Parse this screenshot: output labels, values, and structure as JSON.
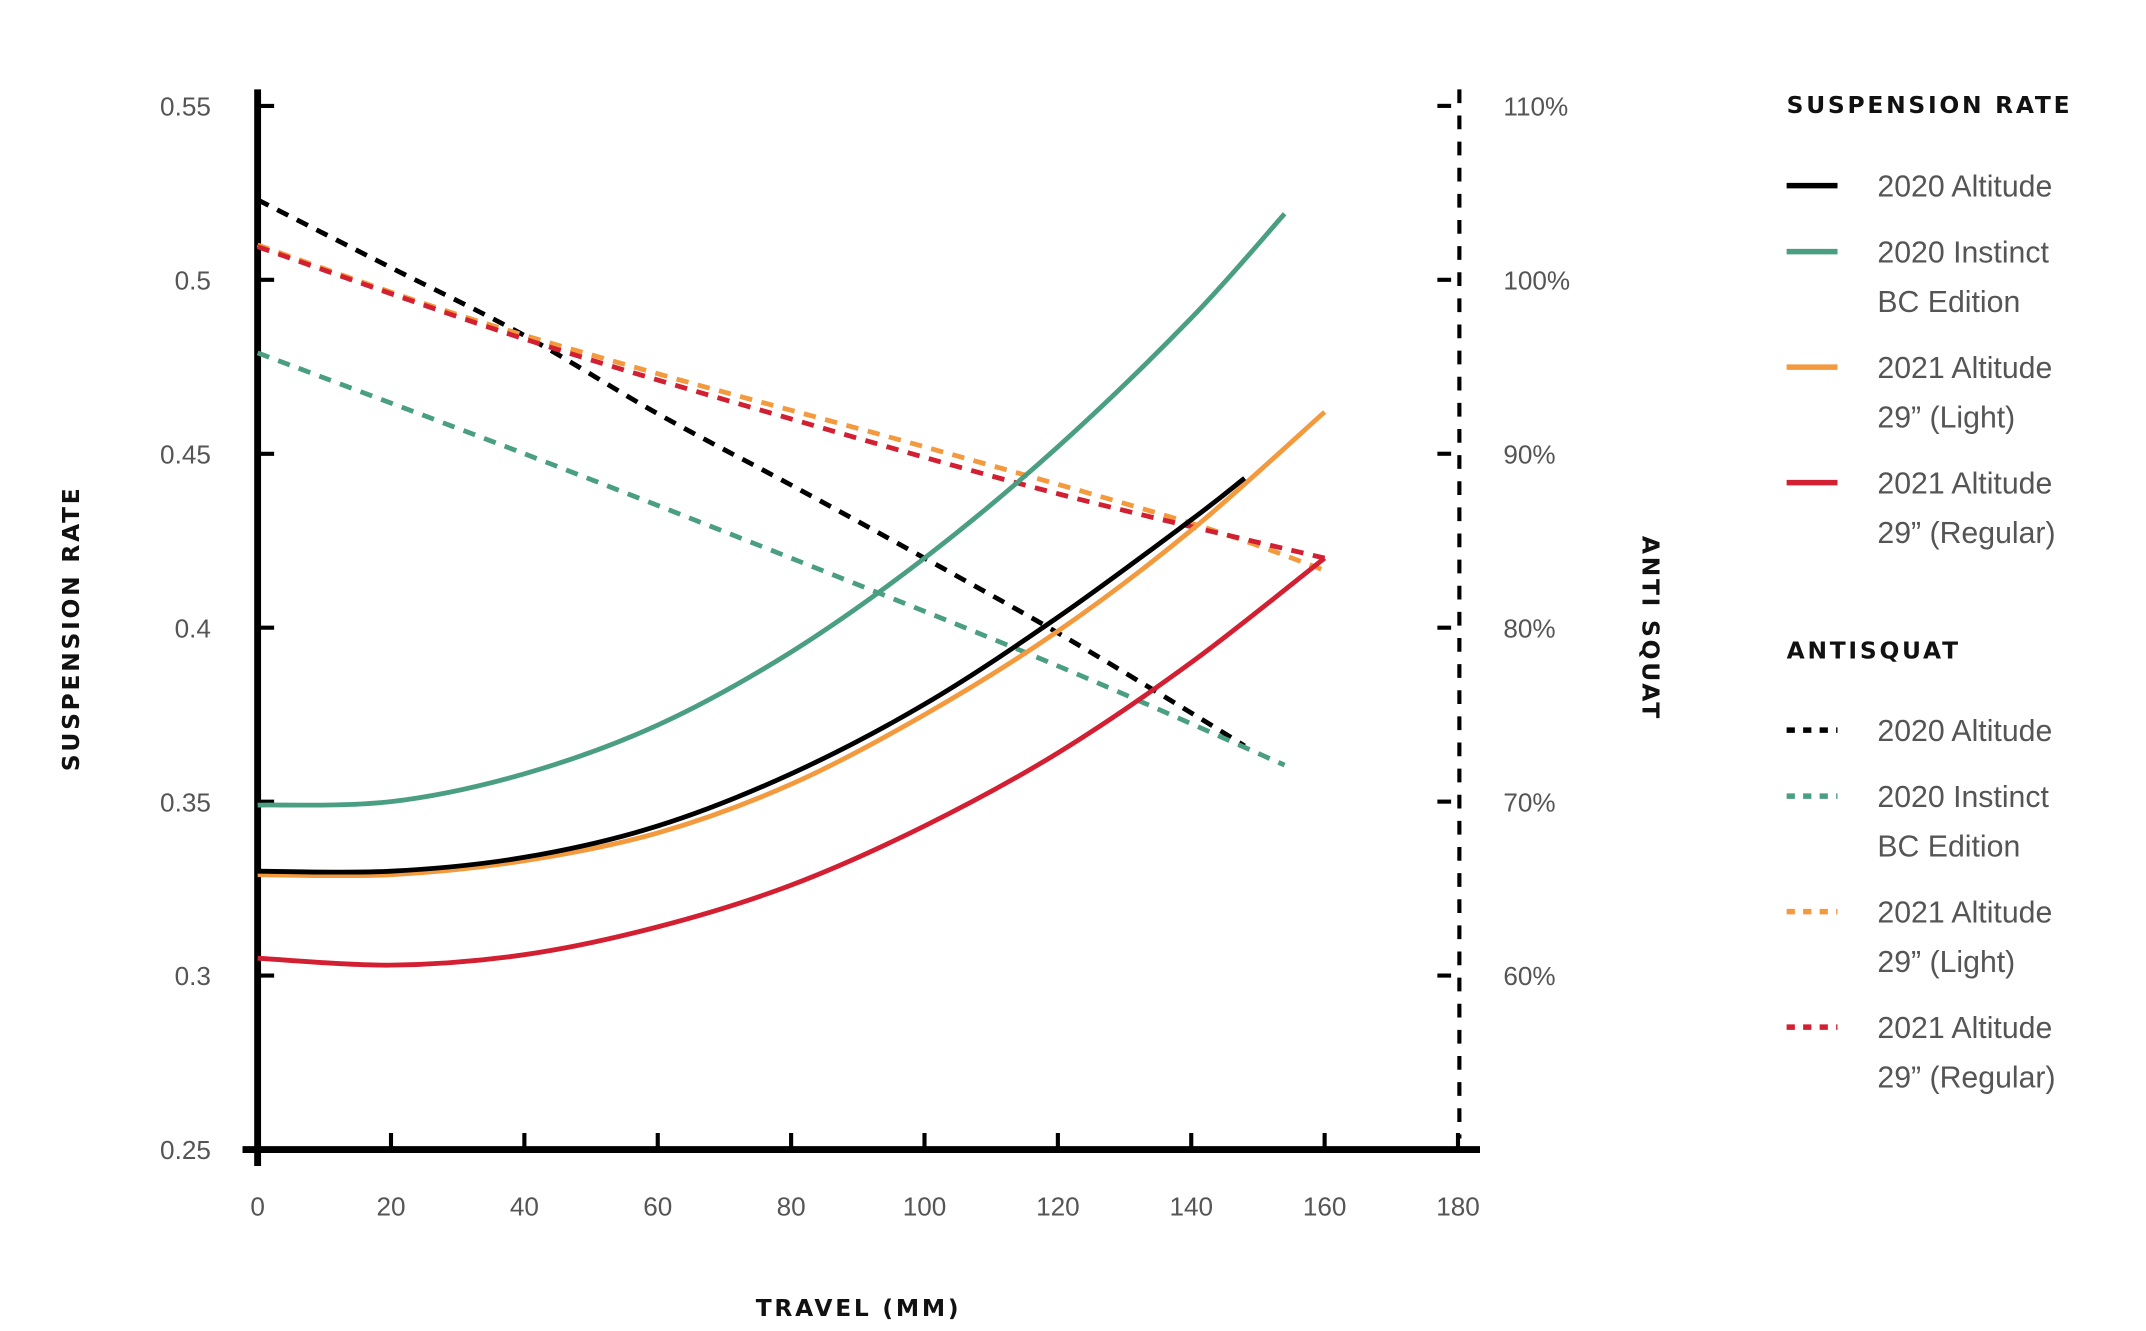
{
  "chart_data": {
    "type": "line",
    "xlabel": "TRAVEL (MM)",
    "ylabel": "SUSPENSION RATE",
    "y2label": "ANTI SQUAT",
    "xlim": [
      0,
      180
    ],
    "ylim": [
      0.25,
      0.55
    ],
    "y2lim": [
      50,
      110
    ],
    "x_ticks": [
      "0",
      "20",
      "40",
      "60",
      "80",
      "100",
      "120",
      "140",
      "160",
      "180"
    ],
    "y_ticks": [
      "0.25",
      "0.3",
      "0.35",
      "0.4",
      "0.45",
      "0.5",
      "0.55"
    ],
    "y2_ticks": [
      "60%",
      "70%",
      "80%",
      "90%",
      "100%",
      "110%"
    ],
    "grid": false,
    "legend_position": "right",
    "legend": {
      "suspension_title": "SUSPENSION RATE",
      "antisquat_title": "ANTISQUAT",
      "entries": [
        {
          "line1": "2020 Altitude",
          "line2": ""
        },
        {
          "line1": "2020 Instinct",
          "line2": "BC Edition"
        },
        {
          "line1": "2021 Altitude",
          "line2": "29” (Light)"
        },
        {
          "line1": "2021 Altitude",
          "line2": "29” (Regular)"
        }
      ]
    },
    "colors": [
      "#000000",
      "#4a9e82",
      "#f39a3e",
      "#d21f32"
    ],
    "suspension_rate": [
      {
        "name": "2020 Altitude",
        "x": [
          0,
          20,
          40,
          60,
          80,
          100,
          120,
          140,
          148
        ],
        "y": [
          0.33,
          0.33,
          0.334,
          0.343,
          0.358,
          0.378,
          0.403,
          0.431,
          0.443
        ]
      },
      {
        "name": "2020 Instinct BC Edition",
        "x": [
          0,
          20,
          40,
          60,
          80,
          100,
          120,
          140,
          154
        ],
        "y": [
          0.349,
          0.35,
          0.358,
          0.372,
          0.393,
          0.42,
          0.452,
          0.489,
          0.519
        ]
      },
      {
        "name": "2021 Altitude 29” (Light)",
        "x": [
          0,
          20,
          40,
          60,
          80,
          100,
          120,
          140,
          160
        ],
        "y": [
          0.329,
          0.329,
          0.333,
          0.341,
          0.355,
          0.375,
          0.399,
          0.428,
          0.462
        ]
      },
      {
        "name": "2021 Altitude 29” (Regular)",
        "x": [
          0,
          20,
          40,
          60,
          80,
          100,
          120,
          140,
          160
        ],
        "y": [
          0.305,
          0.303,
          0.306,
          0.314,
          0.326,
          0.343,
          0.364,
          0.39,
          0.42
        ]
      }
    ],
    "antisquat": [
      {
        "name": "2020 Altitude",
        "x": [
          0,
          20,
          40,
          60,
          80,
          100,
          120,
          140,
          148
        ],
        "y": [
          104.6,
          100.7,
          96.8,
          92.3,
          88.2,
          84.0,
          79.7,
          75.1,
          73.2
        ]
      },
      {
        "name": "2020 Instinct BC Edition",
        "x": [
          0,
          40,
          80,
          120,
          154
        ],
        "y": [
          95.8,
          90.0,
          84.0,
          77.8,
          72.1
        ]
      },
      {
        "name": "2021 Altitude 29” (Light)",
        "x": [
          0,
          30,
          60,
          100,
          140,
          160
        ],
        "y": [
          102.0,
          98.0,
          94.6,
          90.4,
          86.0,
          83.3
        ]
      },
      {
        "name": "2021 Altitude 29” (Regular)",
        "x": [
          0,
          40,
          80,
          120,
          160
        ],
        "y": [
          101.9,
          96.6,
          92.0,
          87.7,
          84.0
        ]
      }
    ]
  }
}
